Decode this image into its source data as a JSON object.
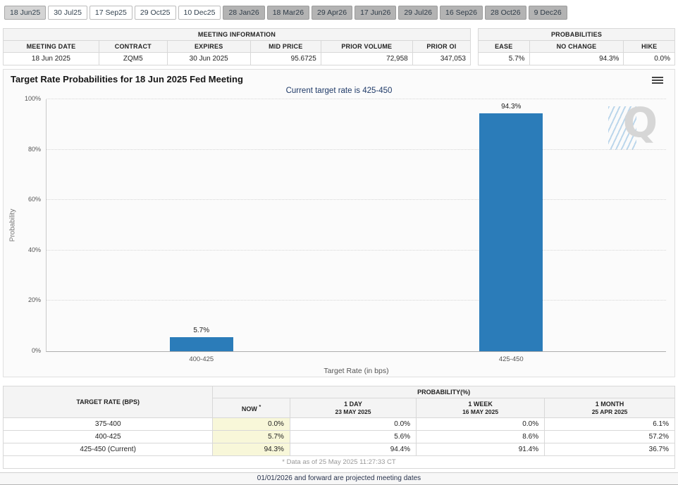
{
  "tabs": [
    {
      "label": "18 Jun25",
      "state": "selected"
    },
    {
      "label": "30 Jul25",
      "state": "near"
    },
    {
      "label": "17 Sep25",
      "state": "near"
    },
    {
      "label": "29 Oct25",
      "state": "near"
    },
    {
      "label": "10 Dec25",
      "state": "near"
    },
    {
      "label": "28 Jan26",
      "state": "future"
    },
    {
      "label": "18 Mar26",
      "state": "future"
    },
    {
      "label": "29 Apr26",
      "state": "future"
    },
    {
      "label": "17 Jun26",
      "state": "future"
    },
    {
      "label": "29 Jul26",
      "state": "future"
    },
    {
      "label": "16 Sep26",
      "state": "future"
    },
    {
      "label": "28 Oct26",
      "state": "future"
    },
    {
      "label": "9 Dec26",
      "state": "future"
    }
  ],
  "meeting_info": {
    "title": "MEETING INFORMATION",
    "columns": [
      "MEETING DATE",
      "CONTRACT",
      "EXPIRES",
      "MID PRICE",
      "PRIOR VOLUME",
      "PRIOR OI"
    ],
    "row": {
      "meeting_date": "18 Jun 2025",
      "contract": "ZQM5",
      "expires": "30 Jun 2025",
      "mid_price": "95.6725",
      "prior_volume": "72,958",
      "prior_oi": "347,053"
    }
  },
  "probabilities": {
    "title": "PROBABILITIES",
    "columns": [
      "EASE",
      "NO CHANGE",
      "HIKE"
    ],
    "row": {
      "ease": "5.7%",
      "no_change": "94.3%",
      "hike": "0.0%"
    }
  },
  "chart": {
    "title": "Target Rate Probabilities for 18 Jun 2025 Fed Meeting",
    "subtitle": "Current target rate is 425-450",
    "watermark": "Q"
  },
  "chart_data": {
    "type": "bar",
    "title": "Target Rate Probabilities for 18 Jun 2025 Fed Meeting",
    "subtitle": "Current target rate is 425-450",
    "categories": [
      "400-425",
      "425-450"
    ],
    "values": [
      5.7,
      94.3
    ],
    "value_labels": [
      "5.7%",
      "94.3%"
    ],
    "xlabel": "Target Rate (in bps)",
    "ylabel": "Probability",
    "ylim": [
      0,
      100
    ],
    "yticks": [
      "0%",
      "20%",
      "40%",
      "60%",
      "80%",
      "100%"
    ],
    "bar_color": "#2b7cb9",
    "grid": "horizontal-dotted",
    "legend": "none"
  },
  "bottom_table": {
    "col_rate": "TARGET RATE (BPS)",
    "col_probability": "PROBABILITY(%)",
    "col_now": "NOW",
    "col_now_sup": "*",
    "history_cols": [
      {
        "label": "1 DAY",
        "date": "23 MAY 2025"
      },
      {
        "label": "1 WEEK",
        "date": "16 MAY 2025"
      },
      {
        "label": "1 MONTH",
        "date": "25 APR 2025"
      }
    ],
    "rows": [
      {
        "rate": "375-400",
        "now": "0.0%",
        "d1": "0.0%",
        "w1": "0.0%",
        "m1": "6.1%"
      },
      {
        "rate": "400-425",
        "now": "5.7%",
        "d1": "5.6%",
        "w1": "8.6%",
        "m1": "57.2%"
      },
      {
        "rate": "425-450 (Current)",
        "now": "94.3%",
        "d1": "94.4%",
        "w1": "91.4%",
        "m1": "36.7%"
      }
    ],
    "footnote": "* Data as of 25 May 2025 11:27:33 CT"
  },
  "footer_note": "01/01/2026 and forward are projected meeting dates"
}
